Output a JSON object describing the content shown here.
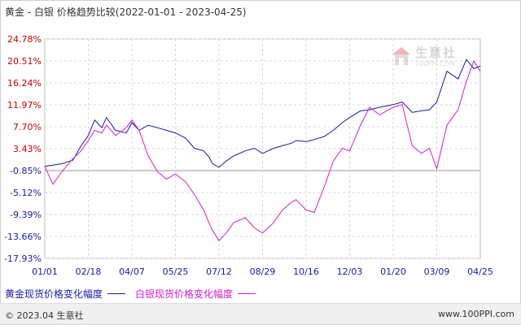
{
  "title": {
    "main": "黄金 - 白银 价格趋势比较",
    "range": "(2022-01-01 - 2023-04-25)"
  },
  "watermark": {
    "name": "生意社",
    "url": "100PPI.COM"
  },
  "footer": {
    "left": "© 2023.04 生意社",
    "right": "www.100PPI.com"
  },
  "colors": {
    "gold": "#1a1aa6",
    "silver": "#d21fcf",
    "ytick_positive": "#cc0000",
    "ytick_negative": "#1a1aa6",
    "grid": "#d9d9d9",
    "zero_line": "#999999"
  },
  "chart_data": {
    "type": "line",
    "title": "黄金 - 白银 价格趋势比较(2022-01-01 - 2023-04-25)",
    "xlabel": "",
    "ylabel": "",
    "x_tick_labels": [
      "01/01",
      "02/18",
      "04/07",
      "05/25",
      "07/12",
      "08/29",
      "10/16",
      "12/03",
      "01/20",
      "03/09",
      "04/25"
    ],
    "y_tick_labels": [
      "24.78%",
      "20.51%",
      "16.24%",
      "11.97%",
      "7.70%",
      "3.43%",
      "-0.85%",
      "-5.12%",
      "-9.39%",
      "-13.66%",
      "-17.93%"
    ],
    "ylim": [
      -17.93,
      24.78
    ],
    "grid": true,
    "legend_position": "bottom-left",
    "series": [
      {
        "name": "黄金现货价格变化幅度",
        "x": [
          "01/01",
          "01/20",
          "02/01",
          "02/10",
          "02/18",
          "02/25",
          "03/05",
          "03/10",
          "03/20",
          "04/01",
          "04/07",
          "04/15",
          "04/25",
          "05/05",
          "05/15",
          "05/25",
          "06/05",
          "06/15",
          "06/25",
          "07/01",
          "07/05",
          "07/12",
          "07/20",
          "07/28",
          "08/10",
          "08/20",
          "08/29",
          "09/10",
          "09/20",
          "09/30",
          "10/05",
          "10/16",
          "10/25",
          "11/05",
          "11/15",
          "11/25",
          "12/03",
          "12/15",
          "12/25",
          "01/05",
          "01/20",
          "01/30",
          "02/10",
          "02/20",
          "03/01",
          "03/09",
          "03/20",
          "04/01",
          "04/10",
          "04/18",
          "04/25"
        ],
        "values": [
          0.0,
          0.5,
          1.2,
          4.0,
          6.0,
          9.0,
          7.5,
          9.5,
          7.0,
          6.5,
          8.5,
          7.0,
          8.0,
          7.5,
          7.0,
          6.5,
          5.5,
          3.5,
          3.0,
          1.8,
          0.5,
          -0.2,
          1.0,
          2.0,
          3.0,
          3.5,
          2.5,
          3.5,
          4.0,
          4.5,
          5.0,
          4.8,
          5.2,
          5.8,
          7.0,
          8.5,
          9.5,
          10.8,
          11.0,
          11.5,
          12.0,
          12.5,
          10.5,
          10.8,
          11.0,
          12.5,
          18.5,
          17.0,
          20.8,
          19.0,
          19.5
        ]
      },
      {
        "name": "白银现货价格变化幅度",
        "x": [
          "01/01",
          "01/10",
          "01/20",
          "02/01",
          "02/10",
          "02/18",
          "02/25",
          "03/05",
          "03/10",
          "03/20",
          "04/01",
          "04/07",
          "04/15",
          "04/25",
          "05/05",
          "05/15",
          "05/25",
          "06/05",
          "06/15",
          "06/25",
          "07/01",
          "07/05",
          "07/12",
          "07/20",
          "07/28",
          "08/10",
          "08/20",
          "08/29",
          "09/10",
          "09/20",
          "09/30",
          "10/05",
          "10/16",
          "10/25",
          "11/05",
          "11/15",
          "11/25",
          "12/03",
          "12/15",
          "12/25",
          "01/05",
          "01/20",
          "01/30",
          "02/10",
          "02/20",
          "03/01",
          "03/09",
          "03/20",
          "04/01",
          "04/10",
          "04/18",
          "04/25"
        ],
        "values": [
          0.0,
          -3.5,
          -1.0,
          1.5,
          3.0,
          5.0,
          7.0,
          6.5,
          8.0,
          6.0,
          7.5,
          9.0,
          7.0,
          2.0,
          -1.0,
          -2.5,
          -1.5,
          -3.0,
          -5.5,
          -8.5,
          -11.0,
          -12.5,
          -14.5,
          -13.0,
          -11.0,
          -10.0,
          -12.0,
          -13.0,
          -11.0,
          -8.5,
          -7.0,
          -6.5,
          -8.5,
          -9.0,
          -4.0,
          1.0,
          3.5,
          3.0,
          8.0,
          11.5,
          10.0,
          11.5,
          12.0,
          4.0,
          2.5,
          3.5,
          -0.5,
          8.0,
          11.0,
          16.5,
          20.5,
          18.5
        ]
      }
    ]
  }
}
